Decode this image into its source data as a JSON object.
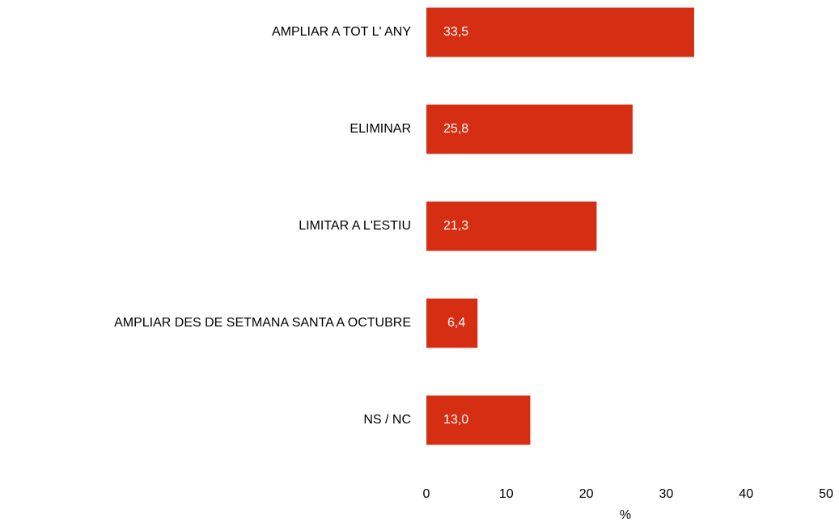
{
  "chart_data": {
    "type": "barh",
    "categories": [
      "AMPLIAR A TOT L' ANY",
      "ELIMINAR",
      "LIMITAR A L'ESTIU",
      "AMPLIAR DES DE SETMANA SANTA A OCTUBRE",
      "NS / NC"
    ],
    "values": [
      33.5,
      25.8,
      21.3,
      6.4,
      13.0
    ],
    "value_labels": [
      "33,5",
      "25,8",
      "21,3",
      "6,4",
      "13,0"
    ],
    "color": "#d52e12",
    "xlim": [
      0,
      50
    ],
    "xticks": [
      0,
      10,
      20,
      30,
      40,
      50
    ],
    "x_label": "%",
    "grid": false
  }
}
